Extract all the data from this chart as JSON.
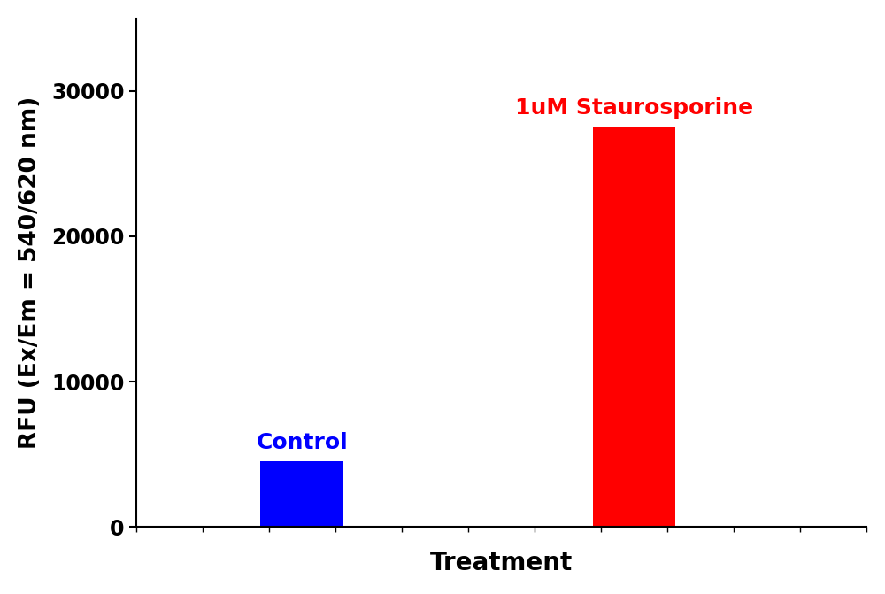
{
  "categories": [
    "Control",
    "1uM Staurosporine"
  ],
  "values": [
    4500,
    27500
  ],
  "bar_colors": [
    "#0000FF",
    "#FF0000"
  ],
  "bar_labels": [
    "Control",
    "1uM Staurosporine"
  ],
  "bar_label_colors": [
    "#0000FF",
    "#FF0000"
  ],
  "ylabel": "RFU (Ex/Em = 540/620 nm)",
  "xlabel": "Treatment",
  "ylim": [
    0,
    35000
  ],
  "yticks": [
    0,
    10000,
    20000,
    30000
  ],
  "ytick_labels": [
    "0",
    "10000",
    "20000",
    "30000"
  ],
  "background_color": "#ffffff",
  "ylabel_fontsize": 19,
  "xlabel_fontsize": 20,
  "tick_fontsize": 17,
  "label_fontsize": 18,
  "bar_width": 0.25
}
